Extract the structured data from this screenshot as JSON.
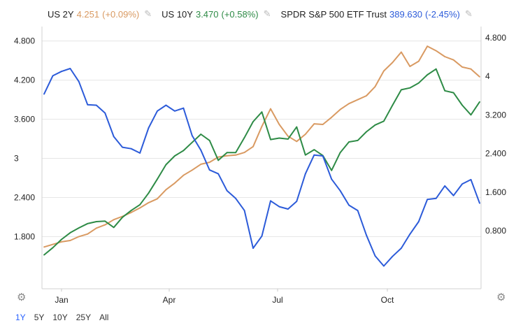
{
  "legend": [
    {
      "name": "US 2Y",
      "value": "4.251",
      "change": "(+0.09%)",
      "color": "#d99a62"
    },
    {
      "name": "US 10Y",
      "value": "3.470",
      "change": "(+0.58%)",
      "color": "#2e8b46"
    },
    {
      "name": "SPDR S&P 500 ETF Trust",
      "value": "389.630",
      "change": "(-2.45%)",
      "color": "#2c5bd9"
    }
  ],
  "range_buttons": [
    "1Y",
    "5Y",
    "10Y",
    "25Y",
    "All"
  ],
  "active_range": "1Y",
  "chart_data": {
    "type": "line",
    "x_ticks": [
      "Jan",
      "Apr",
      "Jul",
      "Oct"
    ],
    "left_axis": {
      "ticks": [
        "1.800",
        "2.400",
        "3",
        "3.600",
        "4.200",
        "4.800"
      ],
      "range": [
        1.0,
        5.0
      ]
    },
    "right_axis": {
      "ticks": [
        "0.800",
        "1.600",
        "2.400",
        "3.200",
        "4",
        "4.800"
      ],
      "range": [
        -0.4,
        5.0
      ]
    },
    "series": [
      {
        "name": "US 2Y",
        "axis": "left",
        "color": "#d99a62",
        "values": [
          1.64,
          1.68,
          1.72,
          1.74,
          1.8,
          1.84,
          1.93,
          1.98,
          2.06,
          2.11,
          2.17,
          2.24,
          2.32,
          2.38,
          2.52,
          2.62,
          2.74,
          2.82,
          2.91,
          2.94,
          3.02,
          3.04,
          3.05,
          3.09,
          3.18,
          3.49,
          3.76,
          3.52,
          3.34,
          3.26,
          3.37,
          3.53,
          3.52,
          3.63,
          3.75,
          3.84,
          3.9,
          3.96,
          4.1,
          4.34,
          4.47,
          4.63,
          4.41,
          4.49,
          4.72,
          4.65,
          4.56,
          4.51,
          4.4,
          4.37,
          4.25
        ]
      },
      {
        "name": "US 10Y",
        "axis": "right",
        "color": "#2e8b46",
        "values": [
          0.3,
          0.45,
          0.62,
          0.76,
          0.86,
          0.95,
          0.99,
          1.0,
          0.87,
          1.08,
          1.22,
          1.34,
          1.58,
          1.87,
          2.17,
          2.35,
          2.46,
          2.63,
          2.8,
          2.67,
          2.26,
          2.42,
          2.42,
          2.73,
          3.06,
          3.26,
          2.69,
          2.72,
          2.7,
          2.95,
          2.37,
          2.48,
          2.36,
          2.05,
          2.42,
          2.64,
          2.67,
          2.85,
          2.99,
          3.07,
          3.4,
          3.72,
          3.76,
          3.86,
          4.03,
          4.15,
          3.7,
          3.66,
          3.4,
          3.2,
          3.47
        ]
      },
      {
        "name": "SPDR S&P 500 ETF Trust",
        "axis": "right",
        "color": "#2c5bd9",
        "values": [
          3.63,
          4.01,
          4.1,
          4.16,
          3.89,
          3.41,
          3.4,
          3.24,
          2.75,
          2.53,
          2.5,
          2.41,
          2.93,
          3.28,
          3.4,
          3.28,
          3.34,
          2.77,
          2.47,
          2.06,
          1.98,
          1.63,
          1.47,
          1.22,
          0.44,
          0.69,
          1.42,
          1.3,
          1.25,
          1.41,
          1.98,
          2.37,
          2.35,
          1.87,
          1.63,
          1.33,
          1.22,
          0.71,
          0.28,
          0.07,
          0.27,
          0.44,
          0.73,
          0.99,
          1.45,
          1.47,
          1.73,
          1.53,
          1.77,
          1.86,
          1.37
        ]
      }
    ],
    "grid": "horizontal"
  }
}
